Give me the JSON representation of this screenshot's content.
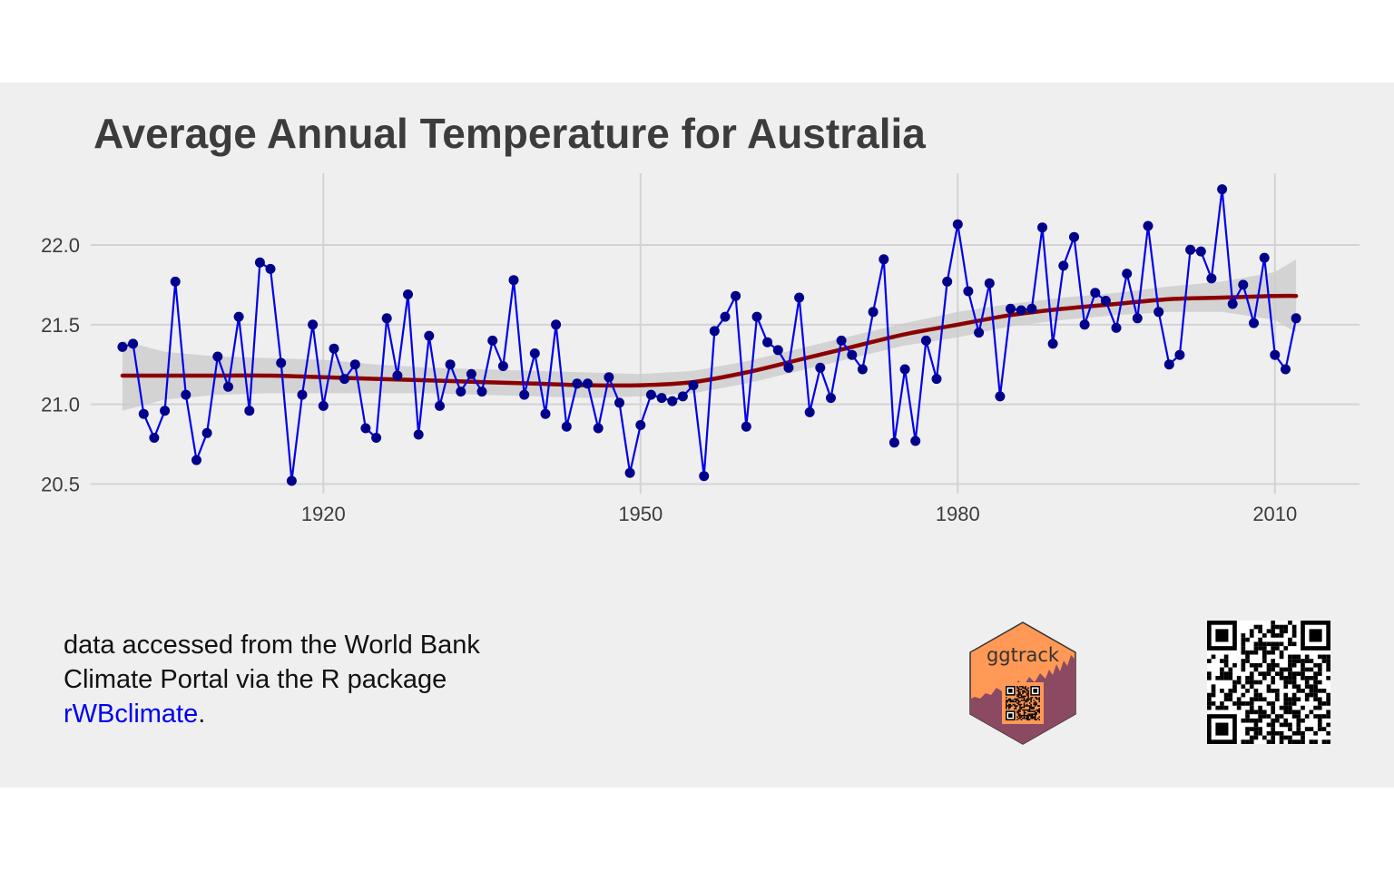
{
  "chart_data": {
    "type": "line",
    "title": "Average Annual Temperature for Australia",
    "xlabel": "",
    "ylabel": "",
    "xlim": [
      1898,
      2018
    ],
    "ylim": [
      20.44,
      22.45
    ],
    "x_ticks": [
      1920,
      1950,
      1980,
      2010
    ],
    "y_ticks": [
      20.5,
      21.0,
      21.5,
      22.0
    ],
    "grid": true,
    "series": [
      {
        "style": "line+points",
        "colors": {
          "line": "#0000ee",
          "points": "#00008b"
        },
        "x": [
          1901,
          1902,
          1903,
          1904,
          1905,
          1906,
          1907,
          1908,
          1909,
          1910,
          1911,
          1912,
          1913,
          1914,
          1915,
          1916,
          1917,
          1918,
          1919,
          1920,
          1921,
          1922,
          1923,
          1924,
          1925,
          1926,
          1927,
          1928,
          1929,
          1930,
          1931,
          1932,
          1933,
          1934,
          1935,
          1936,
          1937,
          1938,
          1939,
          1940,
          1941,
          1942,
          1943,
          1944,
          1945,
          1946,
          1947,
          1948,
          1949,
          1950,
          1951,
          1952,
          1953,
          1954,
          1955,
          1956,
          1957,
          1958,
          1959,
          1960,
          1961,
          1962,
          1963,
          1964,
          1965,
          1966,
          1967,
          1968,
          1969,
          1970,
          1971,
          1972,
          1973,
          1974,
          1975,
          1976,
          1977,
          1978,
          1979,
          1980,
          1981,
          1982,
          1983,
          1984,
          1985,
          1986,
          1987,
          1988,
          1989,
          1990,
          1991,
          1992,
          1993,
          1994,
          1995,
          1996,
          1997,
          1998,
          1999,
          2000,
          2001,
          2002,
          2003,
          2004,
          2005,
          2006,
          2007,
          2008,
          2009,
          2010,
          2011,
          2012
        ],
        "values": [
          21.36,
          21.38,
          20.94,
          20.79,
          20.96,
          21.77,
          21.06,
          20.65,
          20.82,
          21.3,
          21.11,
          21.55,
          20.96,
          21.89,
          21.85,
          21.26,
          20.52,
          21.06,
          21.5,
          20.99,
          21.35,
          21.16,
          21.25,
          20.85,
          20.79,
          21.54,
          21.18,
          21.69,
          20.81,
          21.43,
          20.99,
          21.25,
          21.08,
          21.19,
          21.08,
          21.4,
          21.24,
          21.78,
          21.06,
          21.32,
          20.94,
          21.5,
          20.86,
          21.13,
          21.13,
          20.85,
          21.17,
          21.01,
          20.57,
          20.87,
          21.06,
          21.04,
          21.02,
          21.05,
          21.12,
          20.55,
          21.46,
          21.55,
          21.68,
          20.86,
          21.55,
          21.39,
          21.34,
          21.23,
          21.67,
          20.95,
          21.23,
          21.04,
          21.4,
          21.31,
          21.22,
          21.58,
          21.91,
          20.76,
          21.22,
          20.77,
          21.4,
          21.16,
          21.77,
          22.13,
          21.71,
          21.45,
          21.76,
          21.05,
          21.6,
          21.59,
          21.6,
          22.11,
          21.38,
          21.87,
          22.05,
          21.5,
          21.7,
          21.65,
          21.48,
          21.82,
          21.54,
          22.12,
          21.58,
          21.25,
          21.31,
          21.97,
          21.96,
          21.79,
          22.35,
          21.63,
          21.75,
          21.51,
          21.92,
          21.31,
          21.22,
          21.54
        ]
      },
      {
        "style": "smooth",
        "colors": {
          "line": "#8b0000",
          "band": "#c9c9c9"
        },
        "x": [
          1901,
          1905,
          1910,
          1915,
          1920,
          1925,
          1930,
          1935,
          1940,
          1945,
          1950,
          1955,
          1960,
          1965,
          1970,
          1975,
          1980,
          1985,
          1990,
          1995,
          2000,
          2005,
          2010,
          2012
        ],
        "values": [
          21.18,
          21.18,
          21.18,
          21.18,
          21.17,
          21.16,
          21.15,
          21.14,
          21.13,
          21.12,
          21.12,
          21.14,
          21.2,
          21.28,
          21.36,
          21.44,
          21.5,
          21.56,
          21.6,
          21.63,
          21.66,
          21.67,
          21.68,
          21.68
        ],
        "lower": [
          20.96,
          21.03,
          21.06,
          21.07,
          21.07,
          21.07,
          21.07,
          21.06,
          21.05,
          21.04,
          21.05,
          21.07,
          21.13,
          21.21,
          21.29,
          21.37,
          21.42,
          21.49,
          21.53,
          21.56,
          21.58,
          21.58,
          21.53,
          21.45
        ],
        "upper": [
          21.4,
          21.33,
          21.3,
          21.29,
          21.28,
          21.25,
          21.23,
          21.22,
          21.21,
          21.2,
          21.19,
          21.21,
          21.27,
          21.35,
          21.43,
          21.51,
          21.58,
          21.63,
          21.67,
          21.7,
          21.74,
          21.77,
          21.83,
          21.91
        ]
      }
    ]
  },
  "caption": {
    "line1": "data accessed from the World Bank",
    "line2": "Climate Portal via the R package",
    "link": "rWBclimate",
    "end": "."
  },
  "logo": {
    "text": "ggtrack",
    "colors": {
      "orange": "#ff9955",
      "plum": "#8b4a62"
    }
  },
  "qr_code": {
    "icon": "qr-code-icon"
  }
}
